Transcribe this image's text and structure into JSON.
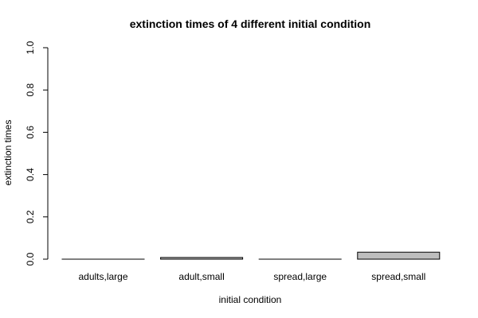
{
  "chart_data": {
    "type": "bar",
    "title": "extinction times of 4 different initial condition",
    "xlabel": "initial condition",
    "ylabel": "extinction times",
    "categories": [
      "adults,large",
      "adult,small",
      "spread,large",
      "spread,small"
    ],
    "values": [
      0.0,
      0.008,
      0.0,
      0.033
    ],
    "ylim": [
      0,
      1
    ],
    "yticks": [
      "0.0",
      "0.2",
      "0.4",
      "0.6",
      "0.8",
      "1.0"
    ],
    "bar_color": "#bebebe",
    "grid": false,
    "legend": "none"
  }
}
